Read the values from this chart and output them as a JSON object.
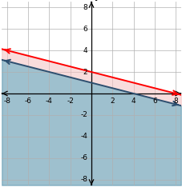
{
  "xlim": [
    -8.5,
    8.5
  ],
  "ylim": [
    -8.5,
    8.5
  ],
  "xticks": [
    -8,
    -6,
    -4,
    -2,
    2,
    4,
    6,
    8
  ],
  "yticks": [
    -8,
    -6,
    -4,
    -2,
    2,
    4,
    6,
    8
  ],
  "line1_slope": -0.25,
  "line1_intercept": 2,
  "line2_slope": -0.25,
  "line2_intercept": 1,
  "line1_color": "#ff0000",
  "line2_color": "#2b4f70",
  "fill_between_color": "#f4c0c0",
  "fill_below_color": "#6a9fb5",
  "fill_below_alpha": 0.65,
  "fill_between_alpha": 0.55,
  "background_color": "#ffffff",
  "grid_color": "#b0b0b0",
  "tick_fontsize": 6.5,
  "axis_label_fontsize": 9
}
